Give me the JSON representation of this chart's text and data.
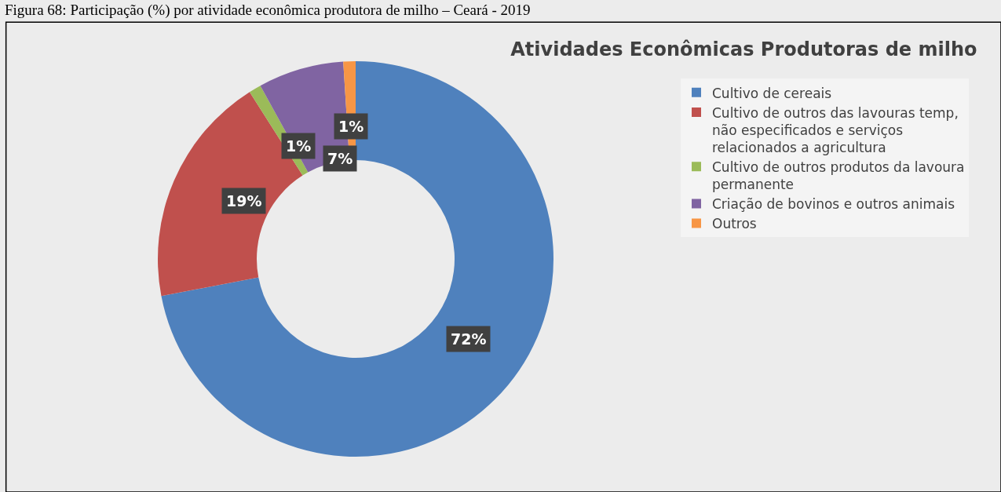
{
  "chart_data": {
    "type": "donut",
    "title": "Atividades Econômicas Produtoras de milho",
    "annotations": [
      "Figura 68: Participação (%) por atividade econômica produtora de milho – Ceará - 2019"
    ],
    "categories": [
      "Cultivo de cereais",
      "Cultivo de outros das lavouras temp, não especificados e serviços relacionados a agricultura",
      "Cultivo de outros produtos da lavoura permanente",
      "Criação de bovinos e outros animais",
      "Outros"
    ],
    "values": [
      72,
      19,
      1,
      7,
      1
    ],
    "value_labels": [
      "72%",
      "19%",
      "1%",
      "7%",
      "1%"
    ],
    "colors": [
      "#4f81bd",
      "#c0504d",
      "#9bbb59",
      "#8064a2",
      "#f79646"
    ],
    "legend": "right"
  }
}
